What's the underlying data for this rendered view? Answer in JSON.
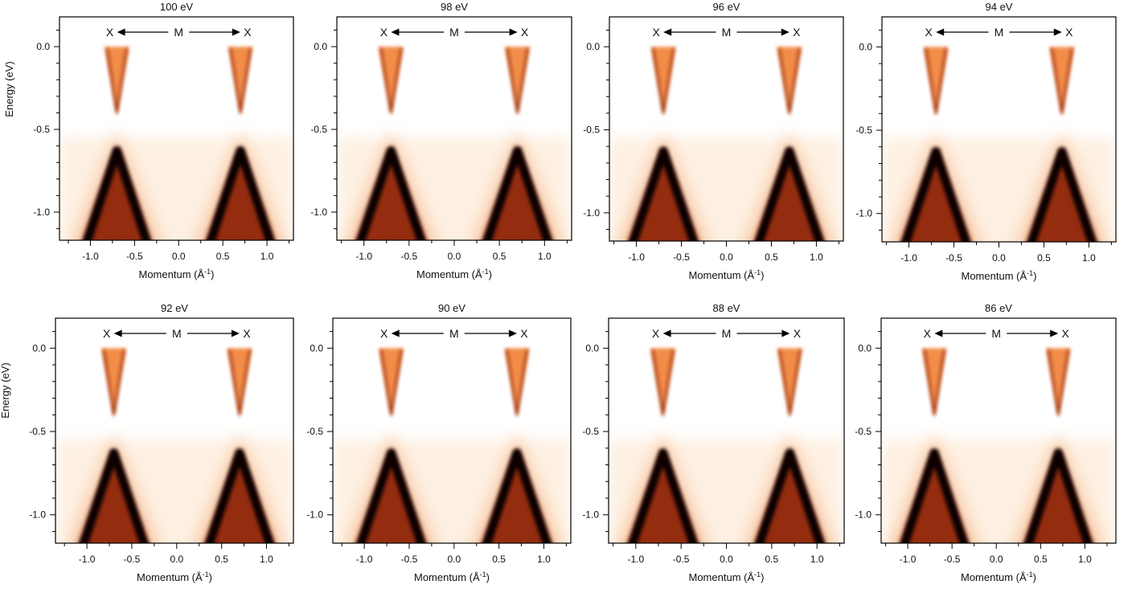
{
  "figure": {
    "ylabel": "Energy (eV)",
    "xlabel": "Momentum (Å",
    "xlabel_sup": "-1",
    "xlabel_close": ")",
    "kpath": {
      "left": "X",
      "mid": "M",
      "right": "X"
    },
    "colors": {
      "background": "#ffffff",
      "low": "#fde3c9",
      "mid": "#f07a2a",
      "high": "#8a1d05",
      "peak": "#0a0000"
    }
  },
  "chart_data": [
    {
      "type": "heatmap",
      "title": "100 eV",
      "xlim": [
        -1.35,
        1.3
      ],
      "ylim": [
        -1.17,
        0.18
      ],
      "xticks": [
        "-1.0",
        "-0.5",
        "0.0",
        "0.5",
        "1.0"
      ],
      "yticks": [
        "0.0",
        "-0.5",
        "-1.0"
      ],
      "cone_centers": [
        -0.7,
        0.7
      ],
      "dirac_point_eV": -0.42,
      "valence_apex_eV": -0.6
    },
    {
      "type": "heatmap",
      "title": "98 eV",
      "xlim": [
        -1.3,
        1.3
      ],
      "ylim": [
        -1.17,
        0.18
      ],
      "xticks": [
        "-1.0",
        "-0.5",
        "0.0",
        "0.5",
        "1.0"
      ],
      "yticks": [
        "0.0",
        "-0.5",
        "-1.0"
      ],
      "cone_centers": [
        -0.7,
        0.7
      ],
      "dirac_point_eV": -0.42,
      "valence_apex_eV": -0.6
    },
    {
      "type": "heatmap",
      "title": "96 eV",
      "xlim": [
        -1.3,
        1.3
      ],
      "ylim": [
        -1.17,
        0.18
      ],
      "xticks": [
        "-1.0",
        "-0.5",
        "0.0",
        "0.5",
        "1.0"
      ],
      "yticks": [
        "0.0",
        "-0.5",
        "-1.0"
      ],
      "cone_centers": [
        -0.7,
        0.7
      ],
      "dirac_point_eV": -0.42,
      "valence_apex_eV": -0.6
    },
    {
      "type": "heatmap",
      "title": "94 eV",
      "xlim": [
        -1.3,
        1.3
      ],
      "ylim": [
        -1.17,
        0.18
      ],
      "xticks": [
        "-1.0",
        "-0.5",
        "0.0",
        "0.5",
        "1.0"
      ],
      "yticks": [
        "0.0",
        "-0.5",
        "-1.0"
      ],
      "cone_centers": [
        -0.7,
        0.7
      ],
      "dirac_point_eV": -0.42,
      "valence_apex_eV": -0.6
    },
    {
      "type": "heatmap",
      "title": "92 eV",
      "xlim": [
        -1.35,
        1.3
      ],
      "ylim": [
        -1.17,
        0.18
      ],
      "xticks": [
        "-1.0",
        "-0.5",
        "0.0",
        "0.5",
        "1.0"
      ],
      "yticks": [
        "0.0",
        "-0.5",
        "-1.0"
      ],
      "cone_centers": [
        -0.7,
        0.7
      ],
      "dirac_point_eV": -0.42,
      "valence_apex_eV": -0.6
    },
    {
      "type": "heatmap",
      "title": "90 eV",
      "xlim": [
        -1.35,
        1.3
      ],
      "ylim": [
        -1.17,
        0.18
      ],
      "xticks": [
        "-1.0",
        "-0.5",
        "0.0",
        "0.5",
        "1.0"
      ],
      "yticks": [
        "0.0",
        "-0.5",
        "-1.0"
      ],
      "cone_centers": [
        -0.7,
        0.7
      ],
      "dirac_point_eV": -0.42,
      "valence_apex_eV": -0.6
    },
    {
      "type": "heatmap",
      "title": "88 eV",
      "xlim": [
        -1.3,
        1.3
      ],
      "ylim": [
        -1.17,
        0.18
      ],
      "xticks": [
        "-1.0",
        "-0.5",
        "0.0",
        "0.5",
        "1.0"
      ],
      "yticks": [
        "0.0",
        "-0.5",
        "-1.0"
      ],
      "cone_centers": [
        -0.7,
        0.7
      ],
      "dirac_point_eV": -0.42,
      "valence_apex_eV": -0.6
    },
    {
      "type": "heatmap",
      "title": "86 eV",
      "xlim": [
        -1.3,
        1.35
      ],
      "ylim": [
        -1.17,
        0.18
      ],
      "xticks": [
        "-1.0",
        "-0.5",
        "0.0",
        "0.5",
        "1.0"
      ],
      "yticks": [
        "0.0",
        "-0.5",
        "-1.0"
      ],
      "cone_centers": [
        -0.7,
        0.7
      ],
      "dirac_point_eV": -0.42,
      "valence_apex_eV": -0.6
    }
  ]
}
